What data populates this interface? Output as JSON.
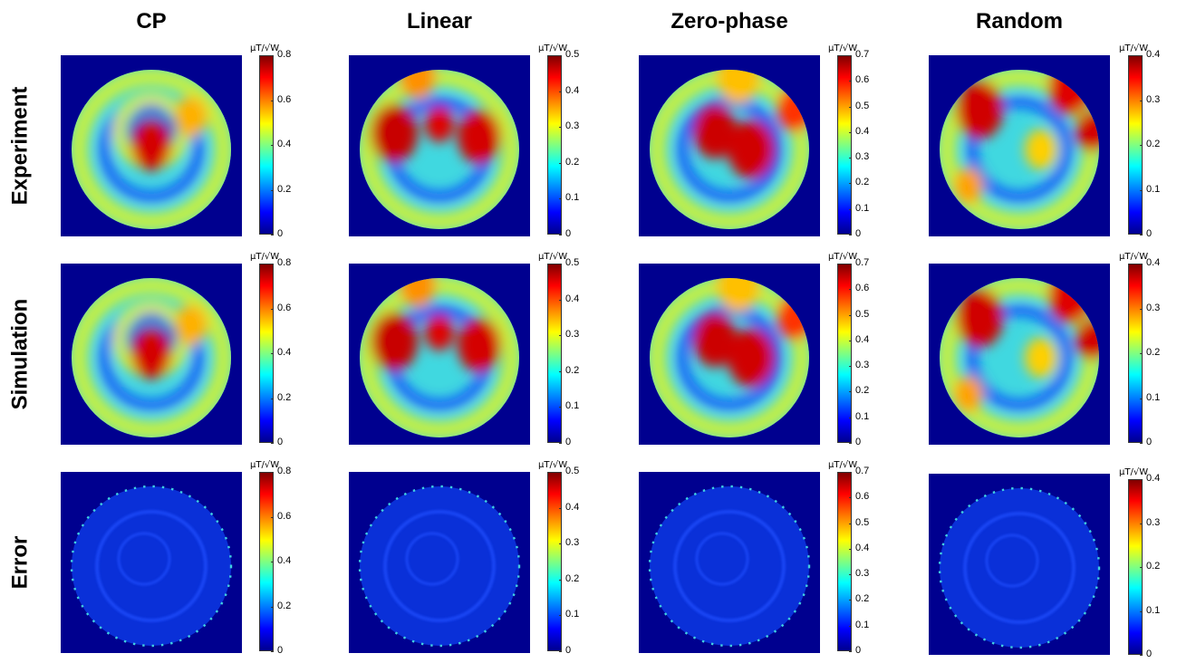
{
  "columns": [
    "CP",
    "Linear",
    "Zero-phase",
    "Random"
  ],
  "rows": [
    "Experiment",
    "Simulation",
    "Error"
  ],
  "colorbar_unit": "μT/√W",
  "chart_data": {
    "type": "heatmap",
    "colormap": "jet",
    "columns": [
      "CP",
      "Linear",
      "Zero-phase",
      "Random"
    ],
    "rows": [
      "Experiment",
      "Simulation",
      "Error"
    ],
    "colorbar_unit": "μT/√W",
    "colorbar_ranges": {
      "CP": [
        0,
        0.8
      ],
      "Linear": [
        0,
        0.5
      ],
      "Zero-phase": [
        0,
        0.7
      ],
      "Random": [
        0,
        0.4
      ]
    },
    "colorbar_ticks": {
      "CP": [
        "0",
        "0.2",
        "0.4",
        "0.6",
        "0.8"
      ],
      "Linear": [
        "0",
        "0.1",
        "0.2",
        "0.3",
        "0.4",
        "0.5"
      ],
      "Zero-phase": [
        "0",
        "0.1",
        "0.2",
        "0.3",
        "0.4",
        "0.5",
        "0.6",
        "0.7"
      ],
      "Random": [
        "0",
        "0.1",
        "0.2",
        "0.3",
        "0.4"
      ]
    },
    "background_color": "#00008f"
  }
}
